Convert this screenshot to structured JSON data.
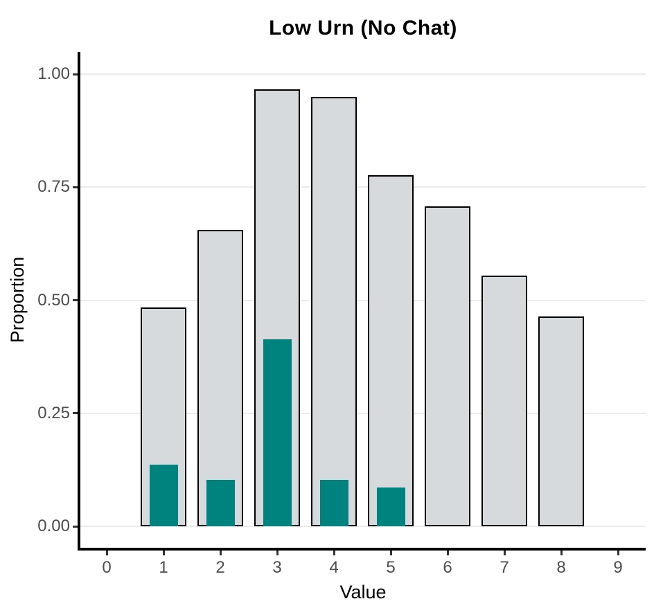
{
  "chart": {
    "title": "Low Urn (No Chat)",
    "xlabel": "Value",
    "ylabel": "Proportion"
  },
  "chart_data": {
    "type": "bar",
    "title": "Low Urn (No Chat)",
    "xlabel": "Value",
    "ylabel": "Proportion",
    "xlim": [
      -0.5,
      9.5
    ],
    "ylim": [
      0,
      1.05
    ],
    "grid": "horizontal-major-only",
    "legend": "none",
    "x_ticks": [
      0,
      1,
      2,
      3,
      4,
      5,
      6,
      7,
      8,
      9
    ],
    "x_tick_labels": [
      "0",
      "1",
      "2",
      "3",
      "4",
      "5",
      "6",
      "7",
      "8",
      "9"
    ],
    "y_ticks": [
      0,
      0.25,
      0.5,
      0.75,
      1.0
    ],
    "y_tick_labels": [
      "0.00",
      "0.25",
      "0.50",
      "0.75",
      "1.00"
    ],
    "series": [
      {
        "name": "overall-proportion",
        "type": "bar",
        "color": "#d7dadd",
        "edge_color": "#000000",
        "bar_width": 0.8,
        "x": [
          1,
          2,
          3,
          4,
          5,
          6,
          7,
          8
        ],
        "values": [
          0.484,
          0.655,
          0.966,
          0.95,
          0.776,
          0.708,
          0.554,
          0.464
        ]
      },
      {
        "name": "highlight-proportion",
        "type": "bar",
        "color": "#00827f",
        "edge_color": "none",
        "bar_width": 0.5,
        "x": [
          1,
          2,
          3,
          4,
          5
        ],
        "values": [
          0.136,
          0.103,
          0.414,
          0.103,
          0.086
        ]
      }
    ],
    "colors": {
      "bar_fill_gray": "#d7dadd",
      "bar_fill_teal": "#00827f",
      "bar_edge": "#000000",
      "gridline": "#ebebeb",
      "tick_text": "#4d4d4d",
      "axis_line": "#000000",
      "background": "#ffffff"
    }
  }
}
